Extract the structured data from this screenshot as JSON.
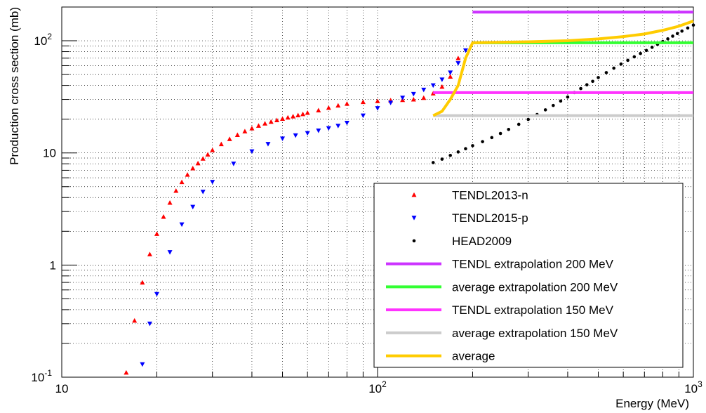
{
  "chart_data": {
    "type": "scatter",
    "title": "",
    "xlabel": "Energy (MeV)",
    "ylabel": "Production cross section (mb)",
    "xscale": "log",
    "yscale": "log",
    "xlim": [
      10,
      1000
    ],
    "ylim": [
      0.1,
      200
    ],
    "grid": true,
    "legend_position": "bottom-right",
    "x_ticks": [
      {
        "base": "10",
        "exp": ""
      },
      {
        "base": "10",
        "exp": "2"
      },
      {
        "base": "10",
        "exp": "3"
      }
    ],
    "y_ticks": [
      {
        "value": 0.1,
        "base": "10",
        "exp": "-1"
      },
      {
        "value": 1,
        "base": "1",
        "exp": ""
      },
      {
        "value": 10,
        "base": "10",
        "exp": ""
      },
      {
        "value": 100,
        "base": "10",
        "exp": "2"
      }
    ],
    "series": [
      {
        "name": "TENDL2013-n",
        "kind": "points",
        "marker": "triangle-up",
        "color": "#ff0000",
        "x": [
          16,
          17,
          18,
          19,
          20,
          21,
          22,
          23,
          24,
          25,
          26,
          27,
          28,
          29,
          30,
          32,
          34,
          36,
          38,
          40,
          42,
          44,
          46,
          48,
          50,
          52,
          54,
          56,
          58,
          60,
          65,
          70,
          75,
          80,
          90,
          100,
          110,
          120,
          130,
          140,
          150,
          160,
          170,
          180
        ],
        "y": [
          0.11,
          0.32,
          0.7,
          1.25,
          1.9,
          2.7,
          3.6,
          4.6,
          5.5,
          6.4,
          7.3,
          8.1,
          8.9,
          9.7,
          10.6,
          12,
          13.3,
          14.5,
          15.6,
          16.6,
          17.5,
          18.3,
          19,
          19.6,
          20.2,
          20.7,
          21.2,
          21.7,
          22.2,
          22.8,
          24,
          25.3,
          26.5,
          27.5,
          28.5,
          29,
          29.5,
          29.7,
          30,
          31,
          34,
          39,
          48,
          70
        ]
      },
      {
        "name": "TENDL2015-p",
        "kind": "points",
        "marker": "triangle-down",
        "color": "#0000ff",
        "x": [
          18,
          19,
          20,
          22,
          24,
          26,
          28,
          30,
          35,
          40,
          45,
          50,
          55,
          60,
          65,
          70,
          75,
          80,
          90,
          100,
          110,
          120,
          130,
          140,
          150,
          160,
          170,
          180,
          190
        ],
        "y": [
          0.13,
          0.3,
          0.55,
          1.3,
          2.3,
          3.3,
          4.5,
          5.5,
          8,
          10.3,
          12,
          13.4,
          14.3,
          15,
          15.8,
          16.6,
          17.4,
          18.5,
          21.5,
          25,
          28,
          31,
          33.5,
          36.5,
          40,
          45,
          52,
          63,
          82
        ]
      },
      {
        "name": "HEAD2009",
        "kind": "points",
        "marker": "circle",
        "color": "#000000",
        "x": [
          150,
          160,
          170,
          180,
          190,
          200,
          215,
          230,
          245,
          260,
          280,
          300,
          320,
          340,
          360,
          380,
          400,
          420,
          440,
          460,
          480,
          500,
          530,
          560,
          590,
          620,
          650,
          680,
          710,
          740,
          770,
          800,
          830,
          860,
          890,
          920,
          960,
          1000
        ],
        "y": [
          8.2,
          8.8,
          9.5,
          10.2,
          10.9,
          11.6,
          12.6,
          13.7,
          14.9,
          16.2,
          18,
          19.9,
          22,
          24.2,
          26.5,
          29,
          31.5,
          34.5,
          37.5,
          40.5,
          43.5,
          47,
          52,
          57,
          62,
          67,
          72,
          77,
          82,
          87.5,
          93,
          98.5,
          104,
          110,
          116,
          122,
          130,
          138
        ]
      },
      {
        "name": "TENDL extrapolation 200 MeV",
        "kind": "line",
        "color": "#cc33ff",
        "x": [
          200,
          1000
        ],
        "y": [
          180,
          180
        ]
      },
      {
        "name": "average extrapolation 200 MeV",
        "kind": "line",
        "color": "#33ff33",
        "x": [
          200,
          1000
        ],
        "y": [
          96,
          96
        ]
      },
      {
        "name": "TENDL extrapolation 150 MeV",
        "kind": "line",
        "color": "#ff33ff",
        "x": [
          150,
          1000
        ],
        "y": [
          34.5,
          34.5
        ]
      },
      {
        "name": "average extrapolation 150 MeV",
        "kind": "line",
        "color": "#cccccc",
        "x": [
          150,
          1000
        ],
        "y": [
          21.5,
          21.5
        ]
      },
      {
        "name": "average",
        "kind": "line",
        "color": "#ffcc00",
        "x": [
          150,
          160,
          170,
          180,
          190,
          200,
          250,
          300,
          400,
          500,
          600,
          700,
          800,
          900,
          1000
        ],
        "y": [
          21.5,
          23.5,
          30,
          40,
          70,
          96,
          97,
          98,
          100,
          104,
          109,
          115,
          124,
          135,
          150
        ]
      }
    ]
  }
}
